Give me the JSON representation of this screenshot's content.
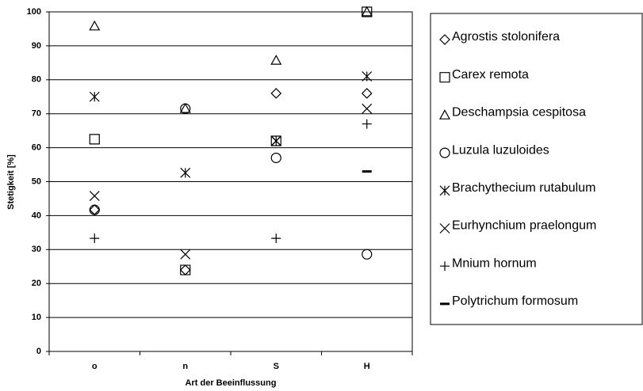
{
  "chart_data": {
    "type": "scatter",
    "xlabel": "Art der Beeinflussung",
    "ylabel": "Stetigkeit [%]",
    "categories": [
      "o",
      "n",
      "S",
      "H"
    ],
    "ylim": [
      0,
      100
    ],
    "yticks": [
      0,
      10,
      20,
      30,
      40,
      50,
      60,
      70,
      80,
      90,
      100
    ],
    "grid": true,
    "legend": "right",
    "series": [
      {
        "name": "Agrostis stolonifera",
        "marker": "diamond",
        "color": "#000000",
        "values": [
          41.7,
          24,
          76,
          76
        ]
      },
      {
        "name": "Carex remota",
        "marker": "square",
        "color": "#000000",
        "values": [
          62.5,
          24,
          62,
          100
        ]
      },
      {
        "name": "Deschampsia cespitosa",
        "marker": "triangle",
        "color": "#000000",
        "values": [
          95.8,
          71.5,
          85.7,
          100
        ]
      },
      {
        "name": "Luzula luzuloides",
        "marker": "circle",
        "color": "#000000",
        "values": [
          41.7,
          71.5,
          57,
          28.6
        ]
      },
      {
        "name": "Brachythecium rutabulum",
        "marker": "asterisk",
        "color": "#000000",
        "values": [
          75,
          52.6,
          62,
          81
        ]
      },
      {
        "name": "Eurhynchium praelongum",
        "marker": "cross",
        "color": "#000000",
        "values": [
          45.8,
          28.6,
          62,
          71.5
        ]
      },
      {
        "name": "Mnium hornum",
        "marker": "plus",
        "color": "#000000",
        "values": [
          33.3,
          null,
          33.3,
          67
        ]
      },
      {
        "name": "Polytrichum formosum",
        "marker": "dash",
        "color": "#000000",
        "values": [
          null,
          null,
          null,
          53
        ]
      }
    ]
  }
}
